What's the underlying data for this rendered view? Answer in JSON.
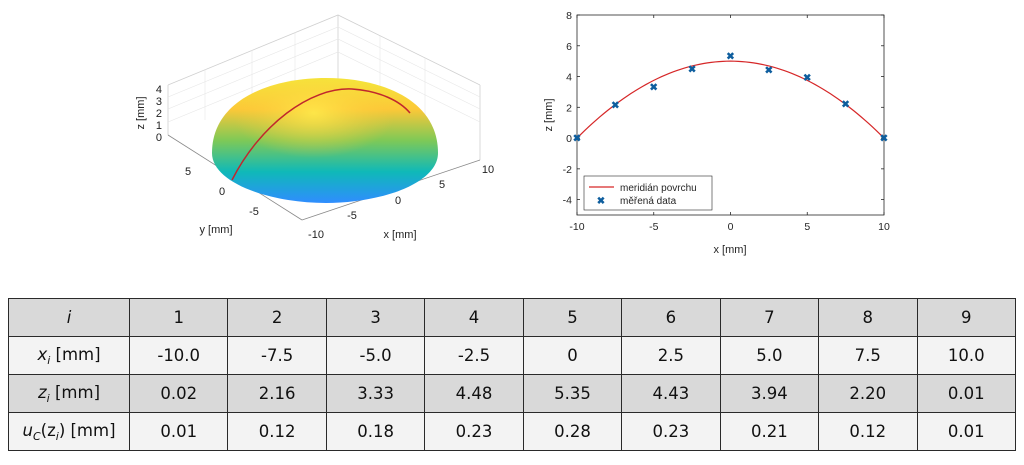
{
  "chart_data": [
    {
      "type": "surface",
      "xlabel": "x [mm]",
      "ylabel": "y [mm]",
      "zlabel": "z [mm]",
      "x_ticks": [
        -10,
        -5,
        0,
        5,
        10
      ],
      "y_ticks": [
        -5,
        0,
        5
      ],
      "z_ticks": [
        0,
        1,
        2,
        3,
        4
      ],
      "xlim": [
        -10,
        10
      ],
      "ylim": [
        -10,
        10
      ],
      "zlim": [
        0,
        5
      ],
      "colormap": [
        "#3e26a8",
        "#2f8dff",
        "#0fb9b8",
        "#7ec957",
        "#fcc838",
        "#fbf315"
      ],
      "meridian_color": "#c0272d"
    },
    {
      "type": "line+scatter",
      "xlabel": "x [mm]",
      "ylabel": "z [mm]",
      "xlim": [
        -10,
        10
      ],
      "ylim": [
        -5,
        8
      ],
      "x_ticks": [
        -10,
        -5,
        0,
        5,
        10
      ],
      "y_ticks": [
        -4,
        -2,
        0,
        2,
        4,
        6,
        8
      ],
      "legend_position": "bottom-left",
      "series": [
        {
          "name": "meridián povrchu",
          "kind": "line",
          "color": "#d62728",
          "x": [
            -10,
            -7.5,
            -5,
            -2.5,
            0,
            2.5,
            5,
            7.5,
            10
          ],
          "y": [
            0,
            2.19,
            3.75,
            4.69,
            5,
            4.69,
            3.75,
            2.19,
            0
          ]
        },
        {
          "name": "měřená data",
          "kind": "scatter",
          "color": "#0e5e9e",
          "x": [
            -10,
            -7.5,
            -5,
            -2.5,
            0,
            2.5,
            5,
            7.5,
            10
          ],
          "y": [
            0.02,
            2.16,
            3.33,
            4.48,
            5.35,
            4.43,
            3.94,
            2.2,
            0.01
          ]
        }
      ]
    }
  ],
  "table": {
    "row_labels": {
      "i": "i",
      "x": {
        "base": "x",
        "sub": "i",
        "unit": " [mm]"
      },
      "z": {
        "base": "z",
        "sub": "i",
        "unit": " [mm]"
      },
      "u": {
        "base": "u",
        "sub": "C",
        "mid": "(z",
        "sub2": "i",
        "end": ") [mm]"
      }
    },
    "i": [
      "1",
      "2",
      "3",
      "4",
      "5",
      "6",
      "7",
      "8",
      "9"
    ],
    "x": [
      "-10.0",
      "-7.5",
      "-5.0",
      "-2.5",
      "0",
      "2.5",
      "5.0",
      "7.5",
      "10.0"
    ],
    "z": [
      "0.02",
      "2.16",
      "3.33",
      "4.48",
      "5.35",
      "4.43",
      "3.94",
      "2.20",
      "0.01"
    ],
    "u": [
      "0.01",
      "0.12",
      "0.18",
      "0.23",
      "0.28",
      "0.23",
      "0.21",
      "0.12",
      "0.01"
    ]
  }
}
